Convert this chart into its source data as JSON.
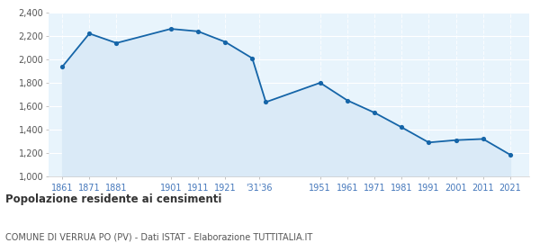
{
  "years": [
    1861,
    1871,
    1881,
    1901,
    1911,
    1921,
    1931,
    1936,
    1951,
    1961,
    1971,
    1981,
    1991,
    2001,
    2011,
    2021
  ],
  "population": [
    1936,
    2221,
    2140,
    2261,
    2240,
    2150,
    2010,
    1635,
    1800,
    1650,
    1545,
    1420,
    1290,
    1310,
    1320,
    1185
  ],
  "ylim": [
    1000,
    2400
  ],
  "yticks": [
    1000,
    1200,
    1400,
    1600,
    1800,
    2000,
    2200,
    2400
  ],
  "line_color": "#1565a8",
  "fill_color": "#daeaf7",
  "marker_color": "#1565a8",
  "fig_bg_color": "#ffffff",
  "plot_bg": "#e8f4fc",
  "grid_color": "#ffffff",
  "title": "Popolazione residente ai censimenti",
  "subtitle": "COMUNE DI VERRUA PO (PV) - Dati ISTAT - Elaborazione TUTTITALIA.IT",
  "title_color": "#333333",
  "subtitle_color": "#555555",
  "tick_label_color": "#4477bb",
  "ytick_label_color": "#555555",
  "x_positions": [
    0,
    1,
    2,
    4,
    5,
    6,
    7,
    7.5,
    9.5,
    10.5,
    11.5,
    12.5,
    13.5,
    14.5,
    15.5,
    16.5
  ],
  "xtick_positions": [
    0,
    1,
    2,
    4,
    5,
    6,
    7.25,
    9.5,
    10.5,
    11.5,
    12.5,
    13.5,
    14.5,
    15.5,
    16.5
  ],
  "xtick_labels": [
    "1861",
    "1871",
    "1881",
    "1901",
    "1911",
    "1921",
    "'31'36",
    "1951",
    "1961",
    "1971",
    "1981",
    "1991",
    "2001",
    "2011",
    "2021"
  ]
}
